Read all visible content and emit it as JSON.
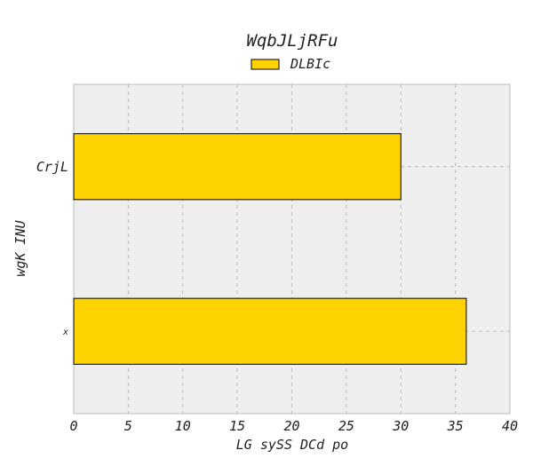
{
  "chart_data": {
    "type": "bar",
    "orientation": "horizontal",
    "title": "WqbJLjRFu",
    "xlabel": "LG sySS DCd po",
    "ylabel": "wgK INU",
    "categories": [
      "CrjL",
      "x"
    ],
    "series": [
      {
        "name": "DLBIc",
        "values": [
          30,
          36
        ]
      }
    ],
    "xlim": [
      0,
      40
    ],
    "xticks": [
      0,
      5,
      10,
      15,
      20,
      25,
      30,
      35,
      40
    ],
    "grid": true,
    "legend": "top-center",
    "colors": {
      "bar": "#FFD300",
      "plot_background": "#EEEEEE",
      "grid": "#BBBBBB",
      "axes_edge": "#BBBBBB"
    }
  }
}
